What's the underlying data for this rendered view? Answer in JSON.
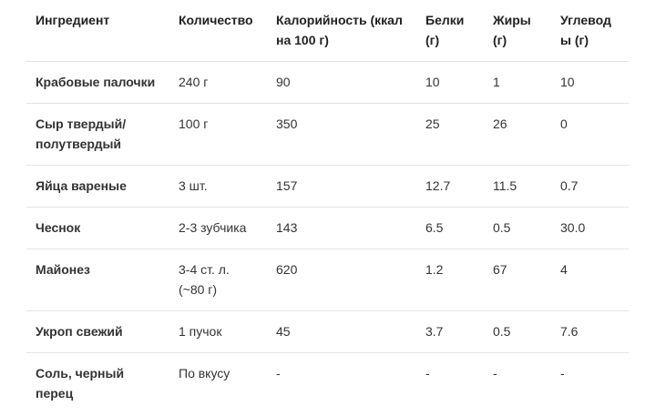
{
  "table": {
    "headers": [
      "Ингредиент",
      "Количество",
      "Калорийность (ккал на 100 г)",
      "Белки (г)",
      "Жиры (г)",
      "Углеводы (г)"
    ],
    "rows": [
      [
        "Крабовые палочки",
        "240 г",
        "90",
        "10",
        "1",
        "10"
      ],
      [
        "Сыр твердый/ полутвердый",
        "100 г",
        "350",
        "25",
        "26",
        "0"
      ],
      [
        "Яйца вареные",
        "3 шт.",
        "157",
        "12.7",
        "11.5",
        "0.7"
      ],
      [
        "Чеснок",
        "2-3 зубчика",
        "143",
        "6.5",
        "0.5",
        "30.0"
      ],
      [
        "Майонез",
        "3-4 ст. л. (~80 г)",
        "620",
        "1.2",
        "67",
        "4"
      ],
      [
        "Укроп свежий",
        "1 пучок",
        "45",
        "3.7",
        "0.5",
        "7.6"
      ],
      [
        "Соль, черный перец",
        "По вкусу",
        "-",
        "-",
        "-",
        "-"
      ]
    ]
  }
}
